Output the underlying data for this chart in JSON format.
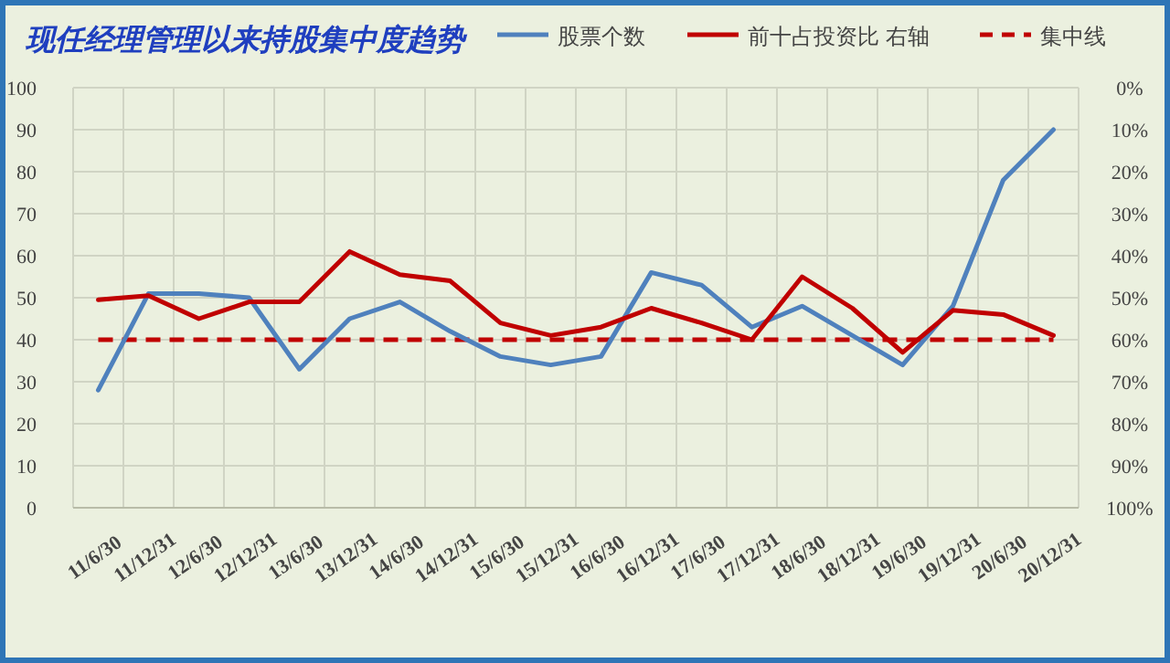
{
  "chart_data": {
    "type": "line",
    "title": "现任经理管理以来持股集中度趋势",
    "categories": [
      "11/6/30",
      "11/12/31",
      "12/6/30",
      "12/12/31",
      "13/6/30",
      "13/12/31",
      "14/6/30",
      "14/12/31",
      "15/6/30",
      "15/12/31",
      "16/6/30",
      "16/12/31",
      "17/6/30",
      "17/12/31",
      "18/6/30",
      "18/12/31",
      "19/6/30",
      "19/12/31",
      "20/6/30",
      "20/12/31"
    ],
    "series": [
      {
        "name": "股票个数",
        "color": "#4f81bd",
        "values": [
          28,
          51,
          51,
          50,
          33,
          45,
          49,
          42,
          36,
          34,
          36,
          56,
          53,
          43,
          48,
          41,
          34,
          48,
          78,
          90
        ]
      },
      {
        "name": "前十占投资比 右轴",
        "color": "#c00000",
        "axis": "y2",
        "values": [
          50.5,
          49.5,
          55,
          51,
          51,
          39,
          44.5,
          46,
          56,
          59,
          57,
          52.5,
          56,
          60,
          45,
          52.5,
          63,
          53,
          54,
          59
        ]
      }
    ],
    "ref_lines": [
      {
        "axis": "y",
        "value": 40,
        "label": "集中线",
        "color": "#c00000",
        "line_style": "dashed"
      }
    ],
    "ylim": [
      0,
      100
    ],
    "yticks": [
      0,
      10,
      20,
      30,
      40,
      50,
      60,
      70,
      80,
      90,
      100
    ],
    "y2lim": [
      100,
      0
    ],
    "y2ticks": [
      {
        "value": 0,
        "label": "0%"
      },
      {
        "value": 10,
        "label": "10%"
      },
      {
        "value": 20,
        "label": "20%"
      },
      {
        "value": 30,
        "label": "30%"
      },
      {
        "value": 40,
        "label": "40%"
      },
      {
        "value": 50,
        "label": "50%"
      },
      {
        "value": 60,
        "label": "60%"
      },
      {
        "value": 70,
        "label": "70%"
      },
      {
        "value": 80,
        "label": "80%"
      },
      {
        "value": 90,
        "label": "90%"
      },
      {
        "value": 100,
        "label": "100%"
      }
    ],
    "grid": true,
    "legend": "top right",
    "line_style": "solid",
    "marker": "none"
  }
}
